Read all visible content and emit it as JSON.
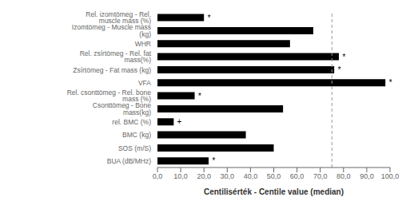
{
  "chart_data": {
    "type": "bar",
    "orientation": "horizontal",
    "categories": [
      "BUA (dB/MHz)",
      "SOS (m/S)",
      "BMC (kg)",
      "rel. BMC (%)",
      "Csonttömeg  - Bone mass(kg)",
      "Rel. csonttömeg - Rel. bone mass (%)",
      "VFA",
      "Zsírtömeg - Fat mass (kg)",
      "Rel. zsírtömeg - Rel. fat mass(%)",
      "WHR",
      "Izomtömeg - Muscle mass (kg)",
      "Rel. izomtömeg - Rel. muscle mass (%)"
    ],
    "values": [
      22,
      50,
      38,
      7,
      54,
      16,
      98,
      76,
      78,
      57,
      67,
      20
    ],
    "annotations": [
      "*",
      null,
      null,
      "+",
      null,
      "*",
      "*",
      "*",
      "*",
      null,
      null,
      "*"
    ],
    "color": "#000000",
    "reference_lines": [
      {
        "x": 75,
        "color": "#999999",
        "line_style": "dashed"
      }
    ],
    "xlim": [
      0,
      100
    ],
    "xticks": [
      {
        "value": 0,
        "label": "0,0"
      },
      {
        "value": 10,
        "label": "10,0"
      },
      {
        "value": 20,
        "label": "20,0"
      },
      {
        "value": 30,
        "label": "30,0"
      },
      {
        "value": 40,
        "label": "40,0"
      },
      {
        "value": 50,
        "label": "50,0"
      },
      {
        "value": 60,
        "label": "60,0"
      },
      {
        "value": 70,
        "label": "70,0"
      },
      {
        "value": 80,
        "label": "80,0"
      },
      {
        "value": 90,
        "label": "90,0"
      },
      {
        "value": 100,
        "label": "100,0"
      }
    ],
    "xlabel": "Centilisérték - Centile value (median)",
    "grid": false
  }
}
